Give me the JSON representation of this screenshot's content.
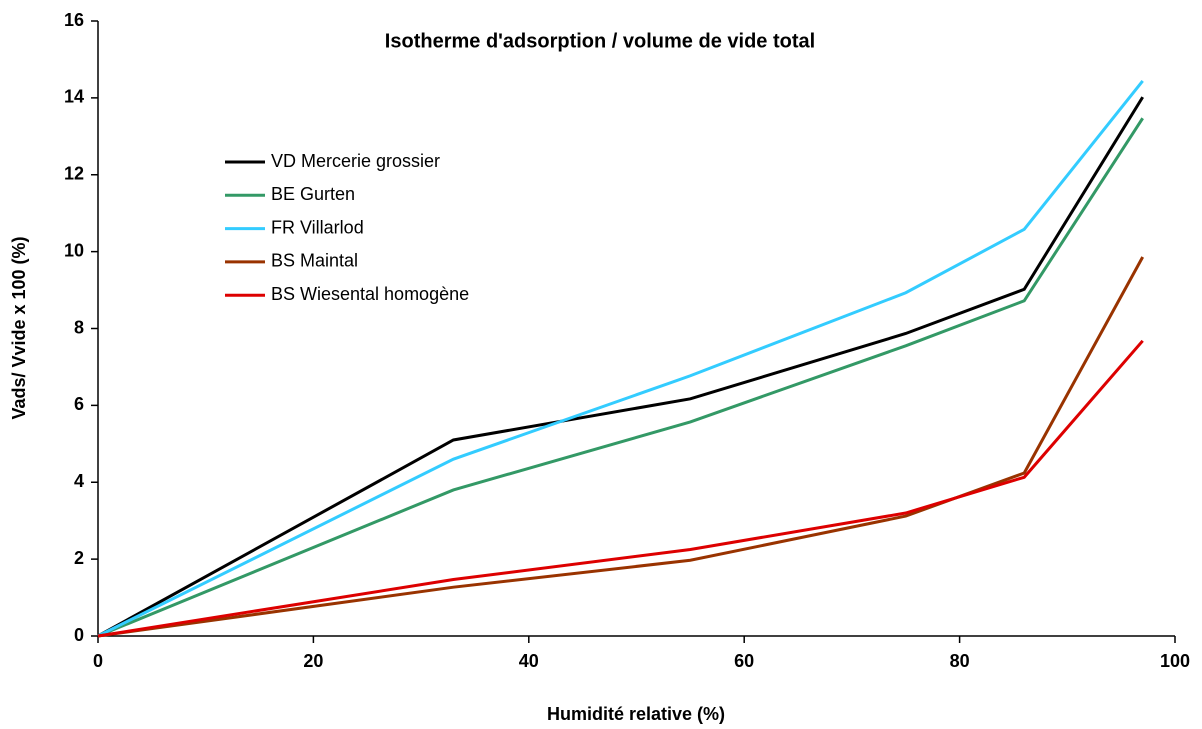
{
  "chart_data": {
    "type": "line",
    "title": "Isotherme d'adsorption / volume de vide total",
    "x_label": "Humidité relative (%)",
    "y_label": "Vads/ Vvide x 100 (%)",
    "x": [
      0,
      33,
      55,
      75,
      86,
      97
    ],
    "series": [
      {
        "name": "VD Mercerie grossier",
        "color": "#000000",
        "values": [
          0,
          5.1,
          6.17,
          7.87,
          9.02,
          14.02
        ]
      },
      {
        "name": "BE Gurten",
        "color": "#339966",
        "values": [
          0,
          3.8,
          5.57,
          7.55,
          8.72,
          13.47
        ]
      },
      {
        "name": "FR Villarlod",
        "color": "#33ccff",
        "values": [
          0,
          4.6,
          6.77,
          8.93,
          10.58,
          14.44
        ]
      },
      {
        "name": "BS Maintal",
        "color": "#993300",
        "values": [
          0,
          1.27,
          1.97,
          3.12,
          4.24,
          9.86
        ]
      },
      {
        "name": "BS Wiesental homogène",
        "color": "#dd0000",
        "values": [
          0,
          1.47,
          2.25,
          3.2,
          4.13,
          7.68
        ]
      }
    ],
    "xlim": [
      0,
      100
    ],
    "xticks": [
      0,
      20,
      40,
      60,
      80,
      100
    ],
    "ylim": [
      0,
      16
    ],
    "yticks": [
      0,
      2,
      4,
      6,
      8,
      10,
      12,
      14,
      16
    ],
    "grid": false,
    "legend": "upper left"
  }
}
